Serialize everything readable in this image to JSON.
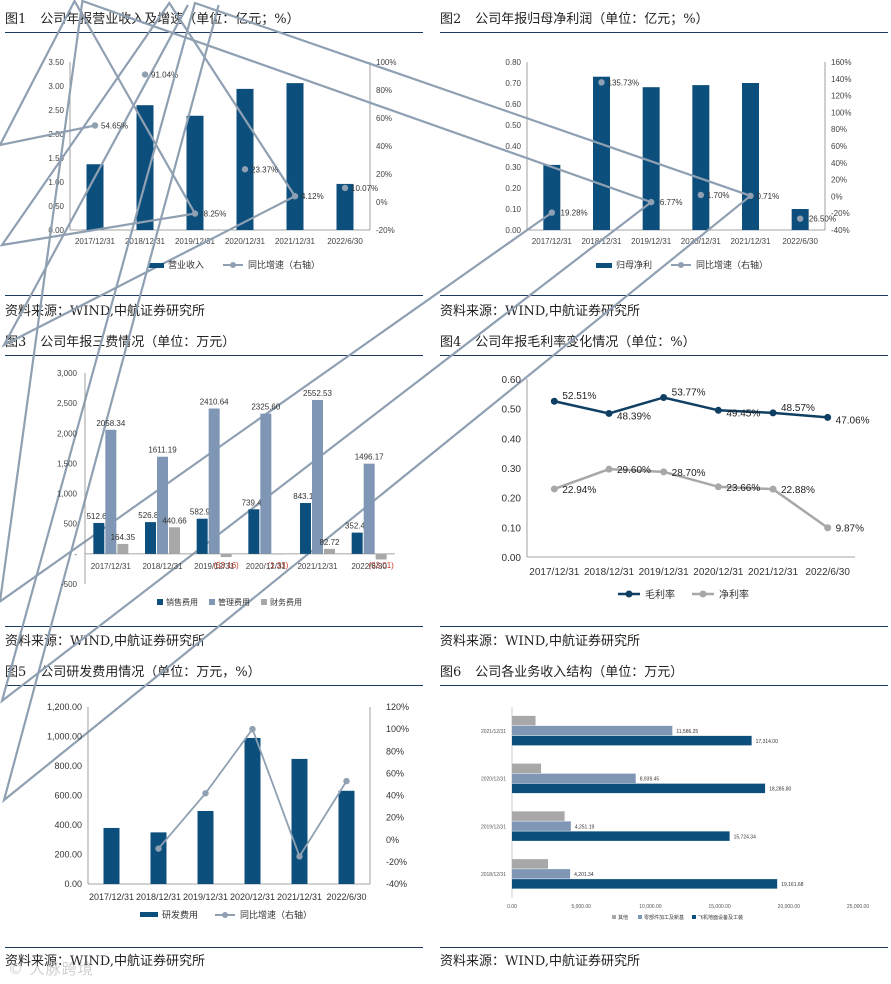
{
  "panels": [
    {
      "fig": "图1",
      "title": "公司年报营业收入及增速（单位：亿元；%）",
      "source": "资料来源：WIND,中航证券研究所"
    },
    {
      "fig": "图2",
      "title": "公司年报归母净利润（单位：亿元；%）",
      "source": "资料来源：WIND,中航证券研究所"
    },
    {
      "fig": "图3",
      "title": "公司年报三费情况（单位：万元）",
      "source": "资料来源：WIND,中航证券研究所"
    },
    {
      "fig": "图4",
      "title": "公司年报毛利率变化情况（单位：%）",
      "source": "资料来源：WIND,中航证券研究所"
    },
    {
      "fig": "图5",
      "title": "公司研发费用情况（单位：万元，%）",
      "source": "资料来源：WIND,中航证券研究所"
    },
    {
      "fig": "图6",
      "title": "公司各业务收入结构（单位：万元）",
      "source": "资料来源：WIND,中航证券研究所"
    }
  ],
  "watermark": "© 人脉跨境",
  "colors": {
    "navy": "#0d4f7c",
    "gray": "#8fa0b2",
    "lightgray": "#a8a8a8",
    "medblue": "#7f96b4",
    "dark": "#0f3f63"
  },
  "chart_data": [
    {
      "type": "bar+line",
      "categories": [
        "2017/12/31",
        "2018/12/31",
        "2019/12/31",
        "2020/12/31",
        "2021/12/31",
        "2022/6/30"
      ],
      "series": [
        {
          "name": "营业收入",
          "axis": "left",
          "values": [
            1.37,
            2.6,
            2.38,
            2.94,
            3.06,
            0.96
          ]
        },
        {
          "name": "同比增速（右轴）",
          "axis": "right",
          "values": [
            54.65,
            91.04,
            -8.25,
            23.37,
            4.12,
            10.07
          ]
        }
      ],
      "labels": [
        "54.65%",
        "91.04%",
        "-8.25%",
        "23.37%",
        "4.12%",
        "10.07%"
      ],
      "ylim": [
        0,
        3.5
      ],
      "yticks": [
        "0.00",
        "0.50",
        "1.00",
        "1.50",
        "2.00",
        "2.50",
        "3.00",
        "3.50"
      ],
      "y2lim": [
        -20,
        100
      ],
      "y2ticks": [
        "-20%",
        "0%",
        "20%",
        "40%",
        "60%",
        "80%",
        "100%"
      ]
    },
    {
      "type": "bar+line",
      "categories": [
        "2017/12/31",
        "2018/12/31",
        "2019/12/31",
        "2020/12/31",
        "2021/12/31",
        "2022/6/30"
      ],
      "series": [
        {
          "name": "归母净利",
          "axis": "left",
          "values": [
            0.31,
            0.73,
            0.68,
            0.69,
            0.7,
            0.1
          ]
        },
        {
          "name": "同比增速（右轴）",
          "axis": "right",
          "values": [
            -19.28,
            135.73,
            -6.77,
            1.7,
            0.71,
            -26.5
          ]
        }
      ],
      "labels": [
        "-19.28%",
        "135.73%",
        "-6.77%",
        "1.70%",
        "0.71%",
        "-26.50%"
      ],
      "ylim": [
        0,
        0.8
      ],
      "yticks": [
        "0.00",
        "0.10",
        "0.20",
        "0.30",
        "0.40",
        "0.50",
        "0.60",
        "0.70",
        "0.80"
      ],
      "y2lim": [
        -40,
        160
      ],
      "y2ticks": [
        "-40%",
        "-20%",
        "0%",
        "20%",
        "40%",
        "60%",
        "80%",
        "100%",
        "120%",
        "140%",
        "160%"
      ]
    },
    {
      "type": "bar",
      "categories": [
        "2017/12/31",
        "2018/12/31",
        "2019/12/31",
        "2020/12/31",
        "2021/12/31",
        "2022/6/30"
      ],
      "series": [
        {
          "name": "销售费用",
          "values": [
            512.64,
            526.87,
            582.92,
            739.46,
            843.16,
            352.42
          ]
        },
        {
          "name": "管理费用",
          "values": [
            2058.34,
            1611.19,
            2410.64,
            2325.6,
            2552.53,
            1496.17
          ]
        },
        {
          "name": "财务费用",
          "values": [
            164.35,
            440.66,
            -53.16,
            -1.33,
            82.72,
            -93.01
          ]
        }
      ],
      "labels": [
        [
          "512.64",
          "526.87",
          "582.92",
          "739.46",
          "843.16",
          "352.42"
        ],
        [
          "2058.34",
          "1611.19",
          "2410.64",
          "2325.60",
          "2552.53",
          "1496.17"
        ],
        [
          "164.35",
          "440.66",
          "(53.16)",
          "(1.33)",
          "82.72",
          "(93.01)"
        ]
      ],
      "ylim": [
        -500,
        3000
      ],
      "yticks": [
        "-500",
        "-",
        "500",
        "1,000",
        "1,500",
        "2,000",
        "2,500",
        "3,000"
      ]
    },
    {
      "type": "line",
      "categories": [
        "2017/12/31",
        "2018/12/31",
        "2019/12/31",
        "2020/12/31",
        "2021/12/31",
        "2022/6/30"
      ],
      "series": [
        {
          "name": "毛利率",
          "values": [
            52.51,
            48.39,
            53.77,
            49.45,
            48.57,
            47.06
          ]
        },
        {
          "name": "净利率",
          "values": [
            22.94,
            29.6,
            28.7,
            23.66,
            22.88,
            9.87
          ]
        }
      ],
      "labels": [
        [
          "52.51%",
          "48.39%",
          "53.77%",
          "49.45%",
          "48.57%",
          "47.06%"
        ],
        [
          "22.94%",
          "29.60%",
          "28.70%",
          "23.66%",
          "22.88%",
          "9.87%"
        ]
      ],
      "ylim": [
        0,
        0.6
      ],
      "yticks": [
        "0.00",
        "0.10",
        "0.20",
        "0.30",
        "0.40",
        "0.50",
        "0.60"
      ]
    },
    {
      "type": "bar+line",
      "categories": [
        "2017/12/31",
        "2018/12/31",
        "2019/12/31",
        "2020/12/31",
        "2021/12/31",
        "2022/6/30"
      ],
      "series": [
        {
          "name": "研发费用",
          "axis": "left",
          "values": [
            380,
            350,
            495,
            990,
            848,
            632
          ]
        },
        {
          "name": "同比增速（右轴）",
          "axis": "right",
          "values": [
            null,
            -8,
            42,
            100,
            -15,
            53
          ]
        }
      ],
      "ylim": [
        0,
        1200
      ],
      "yticks": [
        "0.00",
        "200.00",
        "400.00",
        "600.00",
        "800.00",
        "1,000.00",
        "1,200.00"
      ],
      "y2lim": [
        -40,
        120
      ],
      "y2ticks": [
        "-40%",
        "-20%",
        "0%",
        "20%",
        "40%",
        "60%",
        "80%",
        "100%",
        "120%"
      ]
    },
    {
      "type": "hbar",
      "categories": [
        "2021/12/31",
        "2020/12/31",
        "2019/12/31",
        "2018/12/31"
      ],
      "series": [
        {
          "name": "其他",
          "values": [
            1700,
            2100,
            3800,
            2600
          ]
        },
        {
          "name": "零部件加工及新基",
          "values": [
            11586.25,
            8939.45,
            4251.19,
            4201.34
          ]
        },
        {
          "name": "飞机地面设备及工装",
          "values": [
            17314.0,
            18285.8,
            15724.34,
            19161.68
          ]
        }
      ],
      "labels": [
        [
          "",
          "",
          "",
          ""
        ],
        [
          "11,586.25",
          "8,939.45",
          "4,251.19",
          "4,201.34"
        ],
        [
          "17,314.00",
          "18,285.80",
          "15,724.34",
          "19,161.68"
        ]
      ],
      "xlim": [
        0,
        25000
      ],
      "xticks": [
        "0.00",
        "5,000.00",
        "10,000.00",
        "15,000.00",
        "20,000.00",
        "25,000.00"
      ]
    }
  ]
}
